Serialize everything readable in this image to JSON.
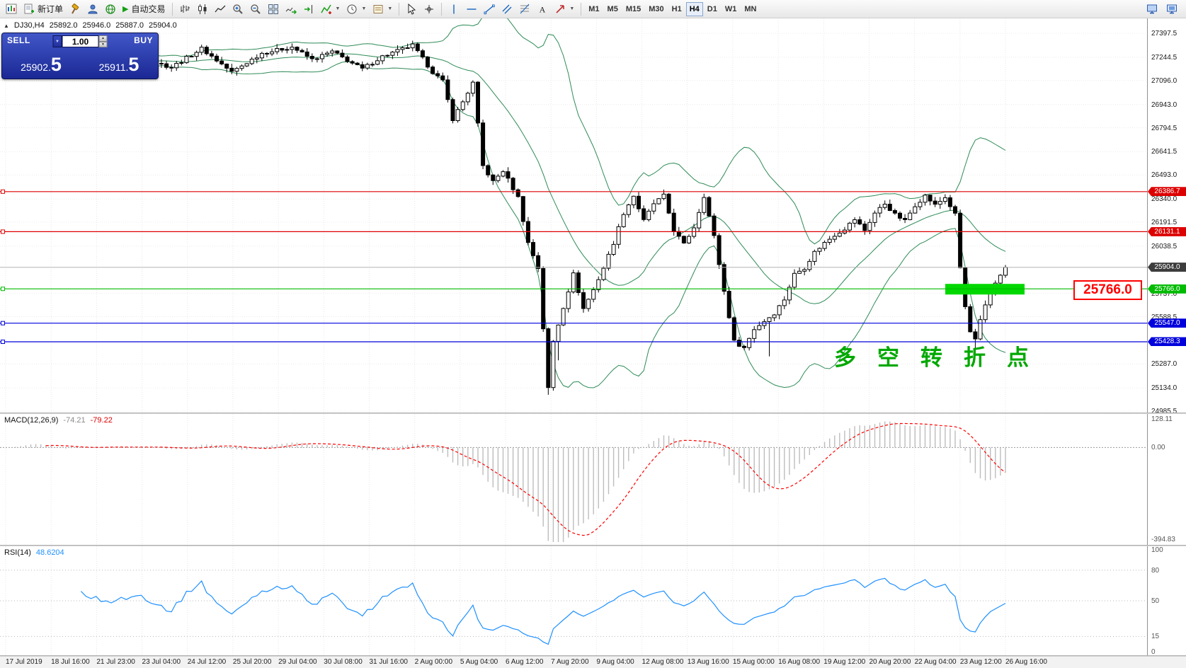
{
  "toolbar": {
    "new_order_label": "新订单",
    "autotrading_label": "自动交易",
    "timeframes": [
      "M1",
      "M5",
      "M15",
      "M30",
      "H1",
      "H4",
      "D1",
      "W1",
      "MN"
    ],
    "active_timeframe": "H4"
  },
  "glyphs": {
    "collapse": "▲",
    "dropdown": "▼",
    "play": "▶",
    "up": "▲",
    "down": "▼"
  },
  "trade_panel": {
    "sell_label": "SELL",
    "buy_label": "BUY",
    "volume": "1.00",
    "sell_price_small": "25902.",
    "sell_price_big": "5",
    "buy_price_small": "25911.",
    "buy_price_big": "5"
  },
  "chart_header": {
    "symbol_period": "DJ30,H4",
    "open": "25892.0",
    "high": "25946.0",
    "low": "25887.0",
    "close": "25904.0"
  },
  "objects": {
    "levels": [
      {
        "price": 26386.7,
        "label": "26386.7",
        "color": "#dd0000"
      },
      {
        "price": 26131.1,
        "label": "26131.1",
        "color": "#dd0000"
      },
      {
        "price": 25766.0,
        "label": "25766.0",
        "color": "#00bb00"
      },
      {
        "price": 25547.0,
        "label": "25547.0",
        "color": "#0000dd"
      },
      {
        "price": 25428.3,
        "label": "25428.3",
        "color": "#0000dd"
      }
    ],
    "current_price": {
      "price": 25904.0,
      "label": "25904.0",
      "color": "#3c3c3c"
    },
    "rectangle": {
      "price": 25766.0,
      "color": "#00d800"
    },
    "callout": {
      "text": "25766.0",
      "color": "#ff0000"
    },
    "annotation": {
      "text": "多空转折点",
      "color": "#00a800"
    }
  },
  "axis": {
    "price_labels": [
      "27397.5",
      "27244.5",
      "27096.0",
      "26943.0",
      "26794.5",
      "26641.5",
      "26493.0",
      "26340.0",
      "26191.5",
      "26038.5",
      "25737.0",
      "25588.5",
      "25287.0",
      "25134.0",
      "24985.5"
    ],
    "time_labels": [
      "17 Jul 2019",
      "18 Jul 16:00",
      "21 Jul 23:00",
      "23 Jul 04:00",
      "24 Jul 12:00",
      "25 Jul 20:00",
      "29 Jul 04:00",
      "30 Jul 08:00",
      "31 Jul 16:00",
      "2 Aug 00:00",
      "5 Aug 04:00",
      "6 Aug 12:00",
      "7 Aug 20:00",
      "9 Aug 04:00",
      "12 Aug 08:00",
      "13 Aug 16:00",
      "15 Aug 00:00",
      "16 Aug 08:00",
      "19 Aug 12:00",
      "20 Aug 20:00",
      "22 Aug 04:00",
      "23 Aug 12:00",
      "26 Aug 16:00"
    ]
  },
  "macd": {
    "name": "MACD(12,26,9)",
    "main_value": "-74.21",
    "signal_value": "-79.22",
    "axis_max": "128.11",
    "axis_zero": "0.00",
    "axis_min": "-394.83",
    "fast": 12,
    "slow": 26,
    "signal": 9,
    "scale_max": 128.11,
    "scale_min": -394.83,
    "histogram_color": "#bdbdbd",
    "signal_color": "#ff0000"
  },
  "rsi": {
    "name": "RSI(14)",
    "value": "48.6204",
    "period": 14,
    "line_color": "#1e90ff",
    "axis_labels": [
      {
        "value": 100,
        "text": "100"
      },
      {
        "value": 80,
        "text": "80"
      },
      {
        "value": 50,
        "text": "50"
      },
      {
        "value": 15,
        "text": "15"
      },
      {
        "value": 0,
        "text": "0"
      }
    ],
    "levels": [
      80,
      50,
      15
    ]
  },
  "chart_data": {
    "type": "candlestick",
    "symbol": "DJ30",
    "period": "H4",
    "price_range": {
      "top": 27397.5,
      "bottom": 24985.5
    },
    "candle_count": 200,
    "last_close": 25904.0,
    "bollinger": {
      "period": 20,
      "deviation": 2,
      "color": "#2e8b57"
    },
    "close_waypoints": [
      [
        0,
        27200
      ],
      [
        5,
        27280
      ],
      [
        10,
        27160
      ],
      [
        15,
        27250
      ],
      [
        20,
        27210
      ],
      [
        27,
        27240
      ],
      [
        33,
        27180
      ],
      [
        39,
        27300
      ],
      [
        45,
        27150
      ],
      [
        51,
        27270
      ],
      [
        57,
        27310
      ],
      [
        61,
        27230
      ],
      [
        65,
        27280
      ],
      [
        71,
        27170
      ],
      [
        75,
        27250
      ],
      [
        81,
        27320
      ],
      [
        85,
        27150
      ],
      [
        87,
        27090
      ],
      [
        89,
        26850
      ],
      [
        91,
        26960
      ],
      [
        93,
        27080
      ],
      [
        95,
        26550
      ],
      [
        97,
        26450
      ],
      [
        99,
        26520
      ],
      [
        102,
        26350
      ],
      [
        104,
        26060
      ],
      [
        106,
        25900
      ],
      [
        108,
        25130
      ],
      [
        109,
        25430
      ],
      [
        111,
        25650
      ],
      [
        113,
        25860
      ],
      [
        115,
        25640
      ],
      [
        117,
        25760
      ],
      [
        119,
        25900
      ],
      [
        121,
        26060
      ],
      [
        123,
        26250
      ],
      [
        125,
        26360
      ],
      [
        127,
        26200
      ],
      [
        129,
        26310
      ],
      [
        131,
        26360
      ],
      [
        133,
        26140
      ],
      [
        135,
        26050
      ],
      [
        137,
        26160
      ],
      [
        139,
        26360
      ],
      [
        141,
        26100
      ],
      [
        143,
        25750
      ],
      [
        145,
        25430
      ],
      [
        147,
        25390
      ],
      [
        149,
        25510
      ],
      [
        151,
        25560
      ],
      [
        153,
        25610
      ],
      [
        155,
        25700
      ],
      [
        157,
        25860
      ],
      [
        159,
        25900
      ],
      [
        161,
        26000
      ],
      [
        163,
        26060
      ],
      [
        165,
        26110
      ],
      [
        167,
        26150
      ],
      [
        169,
        26210
      ],
      [
        171,
        26140
      ],
      [
        173,
        26250
      ],
      [
        175,
        26310
      ],
      [
        177,
        26240
      ],
      [
        179,
        26200
      ],
      [
        181,
        26300
      ],
      [
        183,
        26360
      ],
      [
        185,
        26300
      ],
      [
        187,
        26350
      ],
      [
        189,
        26240
      ],
      [
        190,
        25900
      ],
      [
        191,
        25650
      ],
      [
        192,
        25490
      ],
      [
        193,
        25440
      ],
      [
        194,
        25560
      ],
      [
        196,
        25750
      ],
      [
        198,
        25860
      ],
      [
        199,
        25904
      ]
    ],
    "wick_overrides": [
      [
        108,
        25090
      ],
      [
        110,
        25310
      ],
      [
        152,
        25335
      ],
      [
        193,
        25355
      ]
    ]
  }
}
